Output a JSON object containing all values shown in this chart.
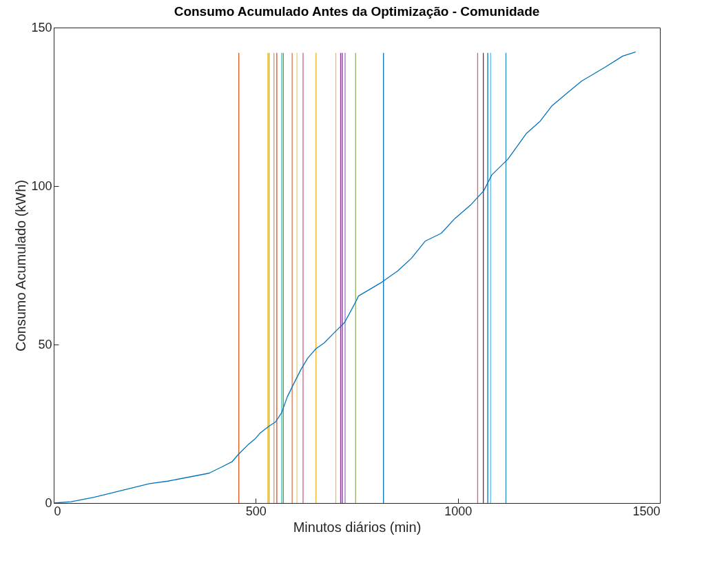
{
  "chart_data": {
    "type": "line",
    "title": "Consumo Acumulado Antes da Optimização - Comunidade",
    "xlabel": "Minutos diários (min)",
    "ylabel": "Consumo Acumulado (kWh)",
    "xlim": [
      0,
      1500
    ],
    "xticks": [
      0,
      500,
      1000,
      1500
    ],
    "ylim": [
      0,
      150
    ],
    "yticks": [
      0,
      50,
      100,
      150
    ],
    "grid": false,
    "legend": false,
    "marker": "none",
    "line_style": "solid",
    "series": [
      {
        "color": "#d95319",
        "x": [
          458,
          458
        ],
        "values": [
          0,
          142
        ]
      },
      {
        "color": "#edb120",
        "x": [
          530,
          530
        ],
        "values": [
          0,
          142
        ]
      },
      {
        "color": "#c9b040",
        "x": [
          533,
          533
        ],
        "values": [
          0,
          142
        ]
      },
      {
        "color": "#e8956b",
        "x": [
          545,
          545
        ],
        "values": [
          0,
          142
        ]
      },
      {
        "color": "#d95319",
        "x": [
          552,
          552
        ],
        "values": [
          0,
          142
        ]
      },
      {
        "color": "#4dbeb0",
        "x": [
          564,
          564
        ],
        "values": [
          0,
          142
        ]
      },
      {
        "color": "#3a9a5a",
        "x": [
          568,
          568
        ],
        "values": [
          0,
          142
        ]
      },
      {
        "color": "#e07050",
        "x": [
          590,
          590
        ],
        "values": [
          0,
          142
        ]
      },
      {
        "color": "#edd060",
        "x": [
          602,
          602
        ],
        "values": [
          0,
          142
        ]
      },
      {
        "color": "#d0607a",
        "x": [
          617,
          617
        ],
        "values": [
          0,
          142
        ]
      },
      {
        "color": "#edb120",
        "x": [
          649,
          649
        ],
        "values": [
          0,
          142
        ]
      },
      {
        "color": "#e0c070",
        "x": [
          698,
          698
        ],
        "values": [
          0,
          142
        ]
      },
      {
        "color": "#7e2f8e",
        "x": [
          710,
          710
        ],
        "values": [
          0,
          142
        ]
      },
      {
        "color": "#7e2f8e",
        "x": [
          714,
          714
        ],
        "values": [
          0,
          142
        ]
      },
      {
        "color": "#a070c0",
        "x": [
          721,
          721
        ],
        "values": [
          0,
          142
        ]
      },
      {
        "color": "#90b060",
        "x": [
          747,
          747
        ],
        "values": [
          0,
          142
        ]
      },
      {
        "color": "#0072bd",
        "x": [
          816,
          816
        ],
        "values": [
          0,
          142
        ]
      },
      {
        "color": "#d06080",
        "x": [
          1049,
          1049
        ],
        "values": [
          0,
          142
        ]
      },
      {
        "color": "#8b2040",
        "x": [
          1063,
          1063
        ],
        "values": [
          0,
          142
        ]
      },
      {
        "color": "#0072bd",
        "x": [
          1074,
          1074
        ],
        "values": [
          0,
          142
        ]
      },
      {
        "color": "#4dbeee",
        "x": [
          1081,
          1081
        ],
        "values": [
          0,
          142
        ]
      },
      {
        "color": "#2a8ab8",
        "x": [
          1119,
          1119
        ],
        "values": [
          0,
          142
        ]
      },
      {
        "color": "#0072bd",
        "x": [
          0,
          43,
          100,
          157,
          237,
          282,
          384,
          413,
          441,
          458,
          481,
          498,
          510,
          532,
          549,
          564,
          578,
          595,
          612,
          629,
          649,
          669,
          697,
          720,
          749,
          754,
          811,
          851,
          885,
          919,
          959,
          993,
          1033,
          1064,
          1084,
          1124,
          1169,
          1204,
          1232,
          1272,
          1306,
          1363,
          1408,
          1440
        ],
        "values": [
          0,
          0.4,
          1.8,
          3.6,
          6.1,
          6.9,
          9.4,
          11.2,
          13.0,
          15.5,
          18.4,
          20.2,
          22.0,
          24.2,
          25.6,
          28.5,
          33.5,
          37.9,
          42.2,
          45.8,
          48.7,
          50.5,
          54.1,
          57.0,
          63.9,
          65.3,
          69.6,
          73.2,
          77.2,
          82.6,
          85.1,
          89.8,
          94.2,
          98.5,
          103.5,
          108.5,
          116.5,
          120.5,
          125.2,
          129.5,
          133.1,
          137.4,
          141.0,
          142.3
        ]
      }
    ]
  }
}
